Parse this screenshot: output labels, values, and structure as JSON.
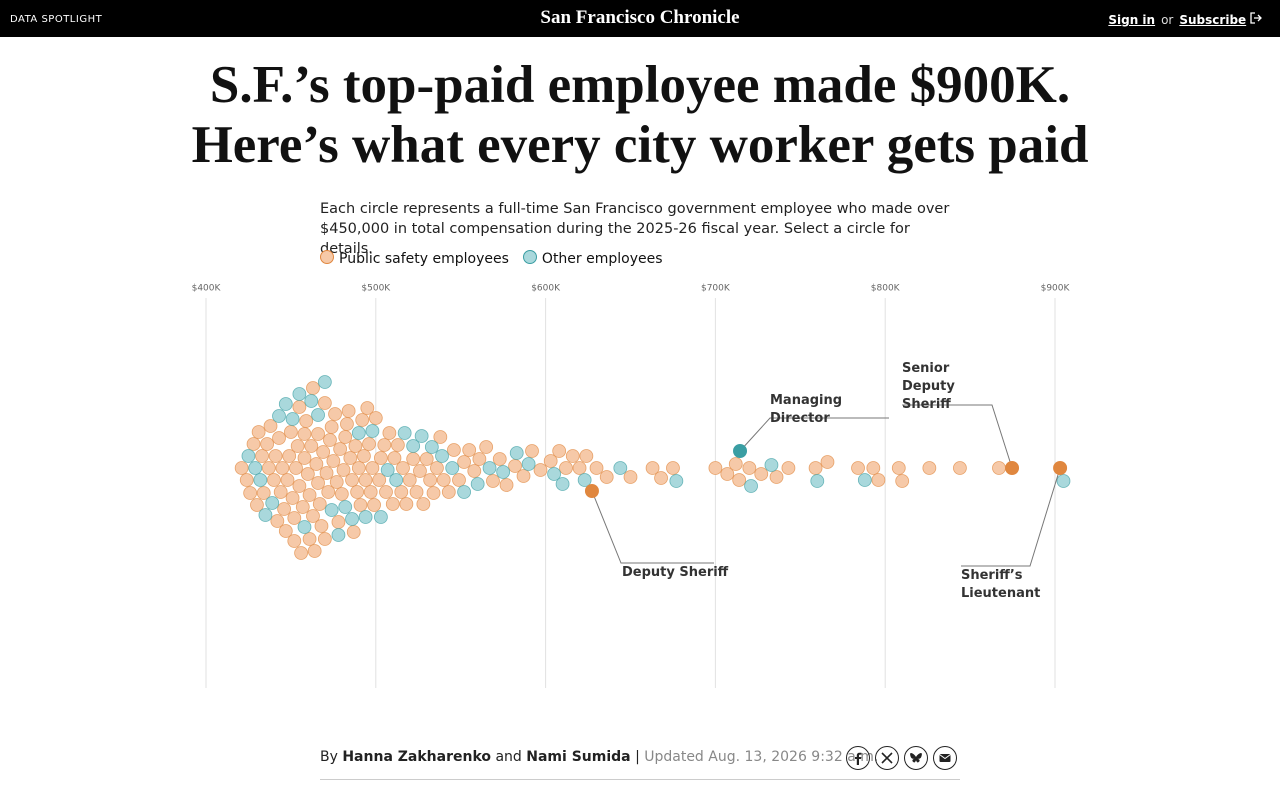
{
  "header": {
    "kicker": "DATA SPOTLIGHT",
    "logo": "San Francisco Chronicle",
    "signin": "Sign in",
    "or": "or",
    "subscribe": "Subscribe"
  },
  "headline": [
    "S.F.’s top-paid employee made $900K.",
    "Here’s what every city worker gets paid"
  ],
  "dek": "Each circle represents a full-time San Francisco government employee who made over $450,000 in total compensation during the 2025-26 fiscal year. Select a circle for details.",
  "chart_data": {
    "type": "beeswarm",
    "xlim": [
      400,
      900
    ],
    "xticks": [
      {
        "value": 400,
        "label": "$400K"
      },
      {
        "value": 500,
        "label": "$500K"
      },
      {
        "value": 600,
        "label": "$600K"
      },
      {
        "value": 700,
        "label": "$700K"
      },
      {
        "value": 800,
        "label": "$800K"
      },
      {
        "value": 900,
        "label": "$900K"
      }
    ],
    "grid": true,
    "series": [
      {
        "name": "Public safety employees",
        "color": "#f6c9a8",
        "highlight_color": "#e0873f",
        "values": [
          421,
          424,
          426,
          428,
          430,
          431,
          433,
          434,
          436,
          437,
          438,
          440,
          441,
          442,
          443,
          444,
          445,
          446,
          447,
          448,
          449,
          450,
          451,
          452,
          452,
          453,
          454,
          455,
          455,
          456,
          457,
          458,
          458,
          459,
          460,
          461,
          461,
          462,
          463,
          463,
          464,
          465,
          466,
          466,
          467,
          468,
          469,
          470,
          470,
          471,
          472,
          473,
          474,
          475,
          476,
          477,
          478,
          479,
          480,
          481,
          482,
          483,
          484,
          485,
          486,
          487,
          488,
          489,
          490,
          491,
          492,
          493,
          494,
          495,
          496,
          497,
          498,
          499,
          500,
          502,
          503,
          505,
          506,
          508,
          510,
          511,
          513,
          515,
          516,
          518,
          520,
          522,
          524,
          526,
          528,
          530,
          532,
          534,
          536,
          538,
          540,
          543,
          546,
          549,
          552,
          555,
          558,
          561,
          565,
          569,
          573,
          577,
          582,
          587,
          592,
          597,
          603,
          608,
          612,
          616,
          620,
          624,
          630,
          636,
          650,
          663,
          668,
          675,
          700,
          707,
          712,
          714,
          720,
          727,
          736,
          743,
          759,
          766,
          784,
          793,
          796,
          808,
          810,
          826,
          844,
          867
        ],
        "highlights": [
          {
            "label": "Deputy Sheriff",
            "value": 627.3
          },
          {
            "label": "Senior Deputy Sheriff",
            "value": 874.7
          },
          {
            "label": "Sheriff’s Lieutenant",
            "value": 903
          }
        ]
      },
      {
        "name": "Other employees",
        "color": "#a9d8dc",
        "highlight_color": "#3a9ea3",
        "values": [
          425,
          429,
          432,
          435,
          439,
          443,
          447,
          451,
          455,
          458,
          462,
          466,
          470,
          474,
          478,
          482,
          486,
          490,
          494,
          498,
          503,
          507,
          512,
          517,
          522,
          527,
          533,
          539,
          545,
          552,
          560,
          567,
          575,
          583,
          590,
          605,
          610,
          623,
          644,
          677,
          721,
          733,
          760,
          788,
          905
        ],
        "highlights": [
          {
            "label": "Managing Director",
            "value": 714.5
          }
        ]
      }
    ]
  },
  "byline": {
    "prefix": "By",
    "author1": "Hanna Zakharenko",
    "joiner": "and",
    "author2": "Nami Sumida",
    "separator": "|",
    "updated": "Updated Aug. 13, 2026 9:32 a.m."
  }
}
